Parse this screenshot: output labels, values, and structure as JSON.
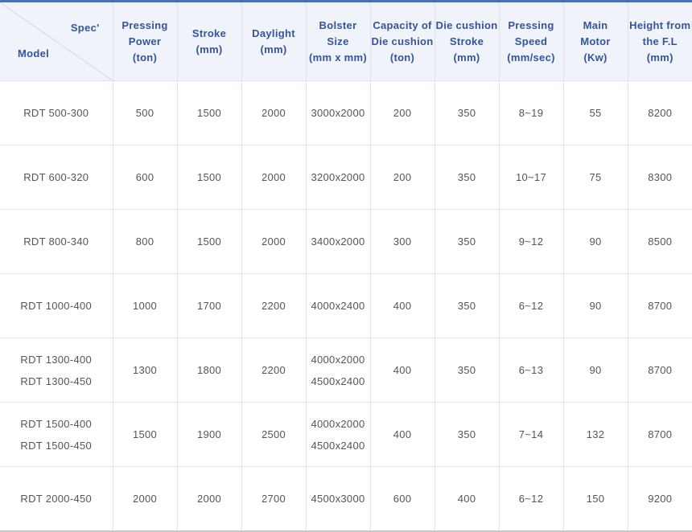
{
  "colors": {
    "top_border": "#4a72b2",
    "header_bg": "#f0f3f9",
    "header_text": "#33549e",
    "body_text": "#555555",
    "grid_line": "#e2e2e6",
    "bottom_border": "#c9c9c9",
    "diagonal_line": "#d9dce1"
  },
  "table": {
    "corner": {
      "top_label": "Spec'",
      "bottom_label": "Model"
    },
    "columns": [
      {
        "key": "pressing-power",
        "lines": [
          "Pressing",
          "Power",
          "(ton)"
        ]
      },
      {
        "key": "stroke",
        "lines": [
          "Stroke",
          "(mm)"
        ]
      },
      {
        "key": "daylight",
        "lines": [
          "Daylight",
          "(mm)"
        ]
      },
      {
        "key": "bolster-size",
        "lines": [
          "Bolster",
          "Size",
          "(mm x mm)"
        ]
      },
      {
        "key": "die-cushion-capacity",
        "lines": [
          "Capacity of",
          "Die cushion",
          "(ton)"
        ]
      },
      {
        "key": "die-cushion-stroke",
        "lines": [
          "Die cushion",
          "Stroke",
          "(mm)"
        ]
      },
      {
        "key": "pressing-speed",
        "lines": [
          "Pressing",
          "Speed",
          "(mm/sec)"
        ]
      },
      {
        "key": "main-motor",
        "lines": [
          "Main",
          "Motor",
          "(Kw)"
        ]
      },
      {
        "key": "height-from-fl",
        "lines": [
          "Height from",
          "the F.L",
          "(mm)"
        ]
      }
    ],
    "rows": [
      {
        "model": [
          "RDT 500-300"
        ],
        "values": [
          [
            "500"
          ],
          [
            "1500"
          ],
          [
            "2000"
          ],
          [
            "3000x2000"
          ],
          [
            "200"
          ],
          [
            "350"
          ],
          [
            "8~19"
          ],
          [
            "55"
          ],
          [
            "8200"
          ]
        ]
      },
      {
        "model": [
          "RDT 600-320"
        ],
        "values": [
          [
            "600"
          ],
          [
            "1500"
          ],
          [
            "2000"
          ],
          [
            "3200x2000"
          ],
          [
            "200"
          ],
          [
            "350"
          ],
          [
            "10~17"
          ],
          [
            "75"
          ],
          [
            "8300"
          ]
        ]
      },
      {
        "model": [
          "RDT 800-340"
        ],
        "values": [
          [
            "800"
          ],
          [
            "1500"
          ],
          [
            "2000"
          ],
          [
            "3400x2000"
          ],
          [
            "300"
          ],
          [
            "350"
          ],
          [
            "9~12"
          ],
          [
            "90"
          ],
          [
            "8500"
          ]
        ]
      },
      {
        "model": [
          "RDT 1000-400"
        ],
        "values": [
          [
            "1000"
          ],
          [
            "1700"
          ],
          [
            "2200"
          ],
          [
            "4000x2400"
          ],
          [
            "400"
          ],
          [
            "350"
          ],
          [
            "6~12"
          ],
          [
            "90"
          ],
          [
            "8700"
          ]
        ]
      },
      {
        "model": [
          "RDT 1300-400",
          "RDT 1300-450"
        ],
        "values": [
          [
            "1300"
          ],
          [
            "1800"
          ],
          [
            "2200"
          ],
          [
            "4000x2000",
            "4500x2400"
          ],
          [
            "400"
          ],
          [
            "350"
          ],
          [
            "6~13"
          ],
          [
            "90"
          ],
          [
            "8700"
          ]
        ]
      },
      {
        "model": [
          "RDT 1500-400",
          "RDT 1500-450"
        ],
        "values": [
          [
            "1500"
          ],
          [
            "1900"
          ],
          [
            "2500"
          ],
          [
            "4000x2000",
            "4500x2400"
          ],
          [
            "400"
          ],
          [
            "350"
          ],
          [
            "7~14"
          ],
          [
            "132"
          ],
          [
            "8700"
          ]
        ]
      },
      {
        "model": [
          "RDT 2000-450"
        ],
        "values": [
          [
            "2000"
          ],
          [
            "2000"
          ],
          [
            "2700"
          ],
          [
            "4500x3000"
          ],
          [
            "600"
          ],
          [
            "400"
          ],
          [
            "6~12"
          ],
          [
            "150"
          ],
          [
            "9200"
          ]
        ]
      }
    ]
  }
}
